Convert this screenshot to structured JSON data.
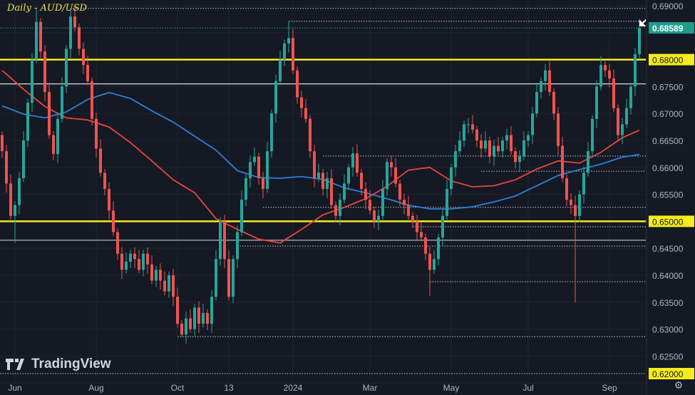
{
  "header": {
    "title": "Daily - AUD/USD"
  },
  "branding": {
    "logo_text": "TradingView"
  },
  "colors": {
    "background": "#151924",
    "grid": "#1f2431",
    "up": "#26a69a",
    "down": "#ef5350",
    "ma_red": "#e8463c",
    "ma_blue": "#2f7fd6",
    "level_yellow": "#f5eb1e",
    "axis_text": "#b2b5be",
    "last_price_bg": "#1f9d8c"
  },
  "icons": {
    "settings": "gear-icon",
    "pointer": "arrow-pointer-icon"
  },
  "chart_data": {
    "type": "candlestick",
    "symbol": "AUD/USD",
    "timeframe": "Daily",
    "ylim": [
      0.62,
      0.6905
    ],
    "y_ticks": [
      "0.69000",
      "0.68500",
      "0.68000",
      "0.67500",
      "0.67000",
      "0.66500",
      "0.66000",
      "0.65500",
      "0.65000",
      "0.64500",
      "0.64000",
      "0.63500",
      "0.63000",
      "0.62500",
      "0.62000"
    ],
    "x_ticks": [
      {
        "label": "Jun",
        "index": 3
      },
      {
        "label": "Aug",
        "index": 22
      },
      {
        "label": "Oct",
        "index": 41
      },
      {
        "label": "13",
        "index": 53
      },
      {
        "label": "2024",
        "index": 68
      },
      {
        "label": "Mar",
        "index": 86
      },
      {
        "label": "May",
        "index": 105
      },
      {
        "label": "Jul",
        "index": 123
      },
      {
        "label": "Sep",
        "index": 142
      }
    ],
    "grid": true,
    "closes": [
      0.663,
      0.657,
      0.651,
      0.653,
      0.658,
      0.665,
      0.672,
      0.68,
      0.687,
      0.6815,
      0.674,
      0.666,
      0.6625,
      0.669,
      0.675,
      0.682,
      0.688,
      0.686,
      0.682,
      0.679,
      0.676,
      0.669,
      0.6635,
      0.659,
      0.656,
      0.652,
      0.648,
      0.644,
      0.641,
      0.6425,
      0.644,
      0.643,
      0.641,
      0.644,
      0.642,
      0.639,
      0.641,
      0.639,
      0.637,
      0.64,
      0.636,
      0.631,
      0.629,
      0.632,
      0.63,
      0.634,
      0.631,
      0.633,
      0.631,
      0.636,
      0.643,
      0.65,
      0.643,
      0.636,
      0.643,
      0.648,
      0.654,
      0.658,
      0.661,
      0.662,
      0.658,
      0.656,
      0.663,
      0.67,
      0.676,
      0.68,
      0.683,
      0.684,
      0.678,
      0.673,
      0.671,
      0.669,
      0.663,
      0.658,
      0.659,
      0.656,
      0.658,
      0.653,
      0.651,
      0.654,
      0.657,
      0.66,
      0.6626,
      0.659,
      0.656,
      0.654,
      0.652,
      0.65,
      0.651,
      0.656,
      0.661,
      0.66,
      0.657,
      0.654,
      0.653,
      0.651,
      0.65,
      0.648,
      0.647,
      0.644,
      0.641,
      0.643,
      0.647,
      0.651,
      0.656,
      0.66,
      0.663,
      0.665,
      0.668,
      0.668,
      0.667,
      0.665,
      0.6635,
      0.665,
      0.662,
      0.664,
      0.663,
      0.665,
      0.666,
      0.663,
      0.661,
      0.662,
      0.665,
      0.666,
      0.67,
      0.674,
      0.676,
      0.678,
      0.674,
      0.67,
      0.664,
      0.658,
      0.654,
      0.653,
      0.651,
      0.655,
      0.659,
      0.663,
      0.669,
      0.675,
      0.679,
      0.678,
      0.6765,
      0.671,
      0.666,
      0.668,
      0.671,
      0.675,
      0.681,
      0.68589
    ],
    "extreme_wicks": [
      {
        "index": 8,
        "high": 0.6895
      },
      {
        "index": 16,
        "high": 0.6895
      },
      {
        "index": 67,
        "high": 0.6871
      },
      {
        "index": 42,
        "low": 0.6286
      },
      {
        "index": 100,
        "low": 0.6362
      },
      {
        "index": 134,
        "low": 0.6349
      },
      {
        "index": 3,
        "low": 0.646
      }
    ],
    "moving_averages": [
      {
        "color_key": "ma_red",
        "step": 5,
        "values": [
          0.678,
          0.6745,
          0.6713,
          0.6692,
          0.6688,
          0.6675,
          0.6646,
          0.6612,
          0.6577,
          0.6553,
          0.6505,
          0.6485,
          0.6467,
          0.646,
          0.6485,
          0.6512,
          0.6526,
          0.6542,
          0.6565,
          0.6595,
          0.66,
          0.6575,
          0.6564,
          0.6566,
          0.6577,
          0.6597,
          0.6612,
          0.6608,
          0.6628,
          0.6655,
          0.6669
        ]
      },
      {
        "color_key": "ma_blue",
        "step": 5,
        "values": [
          0.6714,
          0.6699,
          0.6692,
          0.6703,
          0.6726,
          0.6739,
          0.6728,
          0.6705,
          0.6684,
          0.6658,
          0.6632,
          0.6594,
          0.6581,
          0.658,
          0.6583,
          0.6578,
          0.6562,
          0.6553,
          0.6542,
          0.653,
          0.6523,
          0.6523,
          0.6527,
          0.6536,
          0.6547,
          0.6566,
          0.6585,
          0.6596,
          0.6606,
          0.6619,
          0.6624
        ]
      }
    ],
    "levels": [
      {
        "price": 0.68,
        "style": "yellow",
        "label": "0.68000"
      },
      {
        "price": 0.65,
        "style": "yellow",
        "label": "0.65000"
      },
      {
        "price": 0.62,
        "style": "yellow-dotted",
        "label": "0.62000"
      },
      {
        "price": 0.6755,
        "style": "white"
      },
      {
        "price": 0.6465,
        "style": "grey"
      },
      {
        "price": 0.6895,
        "style": "dotted",
        "from_index": 16
      },
      {
        "price": 0.6871,
        "style": "dotted",
        "from_index": 67
      },
      {
        "price": 0.6621,
        "style": "dotted",
        "from_index": 75
      },
      {
        "price": 0.6593,
        "style": "dotted",
        "from_index": 112
      },
      {
        "price": 0.6526,
        "style": "dotted",
        "from_index": 61
      },
      {
        "price": 0.649,
        "style": "dotted",
        "from_index": 96
      },
      {
        "price": 0.6454,
        "style": "dotted",
        "from_index": 55
      },
      {
        "price": 0.6388,
        "style": "dotted",
        "from_index": 100
      },
      {
        "price": 0.6286,
        "style": "dotted",
        "from_index": 41
      }
    ],
    "last_price": {
      "value": 0.68589,
      "label": "0.68589"
    }
  }
}
